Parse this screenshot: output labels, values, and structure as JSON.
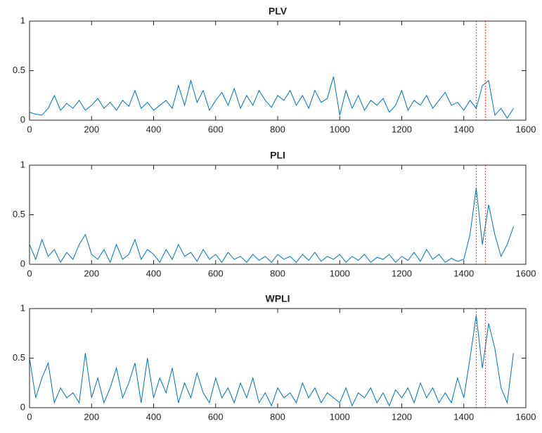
{
  "chart_data": [
    {
      "type": "line",
      "title": "PLV",
      "color": "#0072bd",
      "x": [
        0,
        20,
        40,
        60,
        80,
        100,
        120,
        140,
        160,
        180,
        200,
        220,
        240,
        260,
        280,
        300,
        320,
        340,
        360,
        380,
        400,
        420,
        440,
        460,
        480,
        500,
        520,
        540,
        560,
        580,
        600,
        620,
        640,
        660,
        680,
        700,
        720,
        740,
        760,
        780,
        800,
        820,
        840,
        860,
        880,
        900,
        920,
        940,
        960,
        980,
        1000,
        1020,
        1040,
        1060,
        1080,
        1100,
        1120,
        1140,
        1160,
        1180,
        1200,
        1220,
        1240,
        1260,
        1280,
        1300,
        1320,
        1340,
        1360,
        1380,
        1400,
        1420,
        1440,
        1460,
        1480,
        1500,
        1520,
        1540,
        1560
      ],
      "values": [
        0.08,
        0.06,
        0.05,
        0.12,
        0.25,
        0.1,
        0.17,
        0.12,
        0.2,
        0.1,
        0.15,
        0.22,
        0.12,
        0.18,
        0.1,
        0.2,
        0.14,
        0.3,
        0.12,
        0.18,
        0.1,
        0.15,
        0.2,
        0.12,
        0.35,
        0.15,
        0.4,
        0.18,
        0.3,
        0.1,
        0.2,
        0.28,
        0.15,
        0.32,
        0.12,
        0.25,
        0.15,
        0.3,
        0.2,
        0.13,
        0.25,
        0.2,
        0.3,
        0.15,
        0.25,
        0.12,
        0.3,
        0.18,
        0.22,
        0.44,
        0.05,
        0.3,
        0.12,
        0.25,
        0.1,
        0.2,
        0.15,
        0.22,
        0.08,
        0.15,
        0.3,
        0.1,
        0.2,
        0.15,
        0.25,
        0.12,
        0.2,
        0.28,
        0.15,
        0.18,
        0.1,
        0.2,
        0.12,
        0.35,
        0.4,
        0.05,
        0.12,
        0.02,
        0.12
      ],
      "xlim": [
        0,
        1600
      ],
      "xticks": [
        0,
        200,
        400,
        600,
        800,
        1000,
        1200,
        1400,
        1600
      ],
      "ylim": [
        0,
        1
      ],
      "yticks": [
        0,
        0.5,
        1
      ],
      "vlines": [
        1440,
        1470
      ],
      "vline_color": "#ff0000"
    },
    {
      "type": "line",
      "title": "PLI",
      "color": "#0072bd",
      "x": [
        0,
        20,
        40,
        60,
        80,
        100,
        120,
        140,
        160,
        180,
        200,
        220,
        240,
        260,
        280,
        300,
        320,
        340,
        360,
        380,
        400,
        420,
        440,
        460,
        480,
        500,
        520,
        540,
        560,
        580,
        600,
        620,
        640,
        660,
        680,
        700,
        720,
        740,
        760,
        780,
        800,
        820,
        840,
        860,
        880,
        900,
        920,
        940,
        960,
        980,
        1000,
        1020,
        1040,
        1060,
        1080,
        1100,
        1120,
        1140,
        1160,
        1180,
        1200,
        1220,
        1240,
        1260,
        1280,
        1300,
        1320,
        1340,
        1360,
        1380,
        1400,
        1420,
        1440,
        1460,
        1480,
        1500,
        1520,
        1540,
        1560
      ],
      "values": [
        0.2,
        0.05,
        0.25,
        0.08,
        0.15,
        0.02,
        0.12,
        0.05,
        0.2,
        0.3,
        0.1,
        0.05,
        0.15,
        0.02,
        0.2,
        0.05,
        0.1,
        0.25,
        0.05,
        0.15,
        0.1,
        0.02,
        0.15,
        0.05,
        0.2,
        0.08,
        0.12,
        0.03,
        0.15,
        0.05,
        0.1,
        0.02,
        0.12,
        0.05,
        0.08,
        0.02,
        0.1,
        0.04,
        0.08,
        0.02,
        0.1,
        0.05,
        0.08,
        0.02,
        0.1,
        0.04,
        0.12,
        0.03,
        0.08,
        0.05,
        0.1,
        0.02,
        0.08,
        0.04,
        0.1,
        0.02,
        0.07,
        0.05,
        0.1,
        0.02,
        0.08,
        0.04,
        0.12,
        0.03,
        0.15,
        0.05,
        0.1,
        0.02,
        0.06,
        0.03,
        0.05,
        0.3,
        0.77,
        0.2,
        0.6,
        0.3,
        0.08,
        0.2,
        0.38
      ],
      "xlim": [
        0,
        1600
      ],
      "xticks": [
        0,
        200,
        400,
        600,
        800,
        1000,
        1200,
        1400,
        1600
      ],
      "ylim": [
        0,
        1
      ],
      "yticks": [
        0,
        0.5,
        1
      ],
      "vlines": [
        1440,
        1470
      ],
      "vline_color": "#ff0000"
    },
    {
      "type": "line",
      "title": "WPLI",
      "color": "#0072bd",
      "x": [
        0,
        20,
        40,
        60,
        80,
        100,
        120,
        140,
        160,
        180,
        200,
        220,
        240,
        260,
        280,
        300,
        320,
        340,
        360,
        380,
        400,
        420,
        440,
        460,
        480,
        500,
        520,
        540,
        560,
        580,
        600,
        620,
        640,
        660,
        680,
        700,
        720,
        740,
        760,
        780,
        800,
        820,
        840,
        860,
        880,
        900,
        920,
        940,
        960,
        980,
        1000,
        1020,
        1040,
        1060,
        1080,
        1100,
        1120,
        1140,
        1160,
        1180,
        1200,
        1220,
        1240,
        1260,
        1280,
        1300,
        1320,
        1340,
        1360,
        1380,
        1400,
        1420,
        1440,
        1460,
        1480,
        1500,
        1520,
        1540,
        1560
      ],
      "values": [
        0.5,
        0.1,
        0.3,
        0.45,
        0.05,
        0.2,
        0.1,
        0.15,
        0.05,
        0.55,
        0.1,
        0.3,
        0.05,
        0.2,
        0.4,
        0.1,
        0.25,
        0.45,
        0.05,
        0.5,
        0.1,
        0.3,
        0.15,
        0.4,
        0.05,
        0.25,
        0.1,
        0.35,
        0.15,
        0.05,
        0.3,
        0.1,
        0.2,
        0.05,
        0.25,
        0.1,
        0.3,
        0.05,
        0.15,
        0.02,
        0.2,
        0.1,
        0.15,
        0.05,
        0.25,
        0.1,
        0.2,
        0.05,
        0.15,
        0.1,
        0.05,
        0.2,
        0.02,
        0.15,
        0.1,
        0.2,
        0.05,
        0.15,
        0.02,
        0.18,
        0.1,
        0.2,
        0.05,
        0.25,
        0.1,
        0.2,
        0.05,
        0.15,
        0.05,
        0.3,
        0.1,
        0.5,
        0.93,
        0.4,
        0.85,
        0.6,
        0.2,
        0.05,
        0.55
      ],
      "xlim": [
        0,
        1600
      ],
      "xticks": [
        0,
        200,
        400,
        600,
        800,
        1000,
        1200,
        1400,
        1600
      ],
      "ylim": [
        0,
        1
      ],
      "yticks": [
        0,
        0.5,
        1
      ],
      "vlines": [
        1440,
        1470
      ],
      "vline_color": "#ff0000"
    }
  ]
}
